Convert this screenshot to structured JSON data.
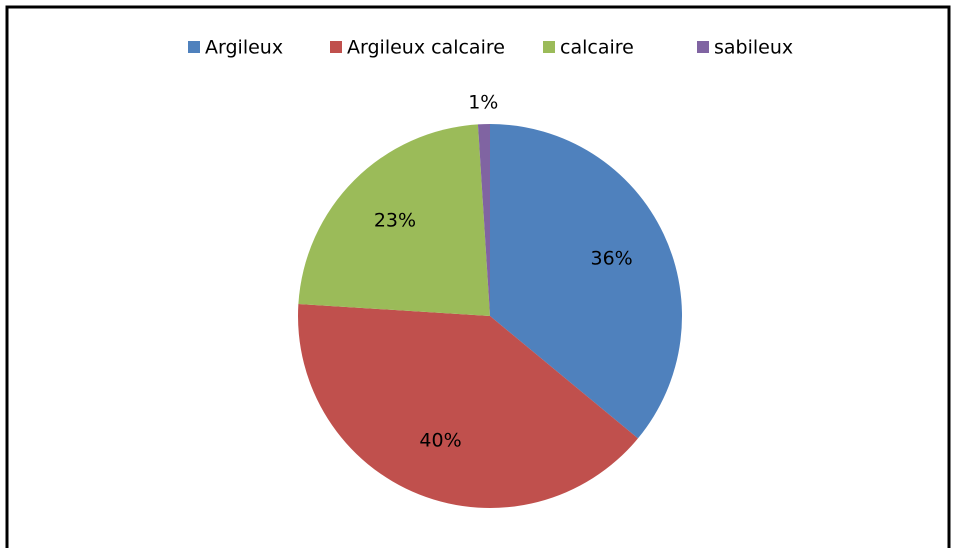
{
  "chart_data": {
    "type": "pie",
    "categories": [
      "Argileux",
      "Argileux calcaire",
      "calcaire",
      "sabileux"
    ],
    "values": [
      36,
      40,
      23,
      1
    ],
    "value_labels": [
      "36%",
      "40%",
      "23%",
      "1%"
    ],
    "colors": [
      "#4f81bd",
      "#c0504d",
      "#9bbb59",
      "#8064a2"
    ],
    "legend": "top"
  }
}
